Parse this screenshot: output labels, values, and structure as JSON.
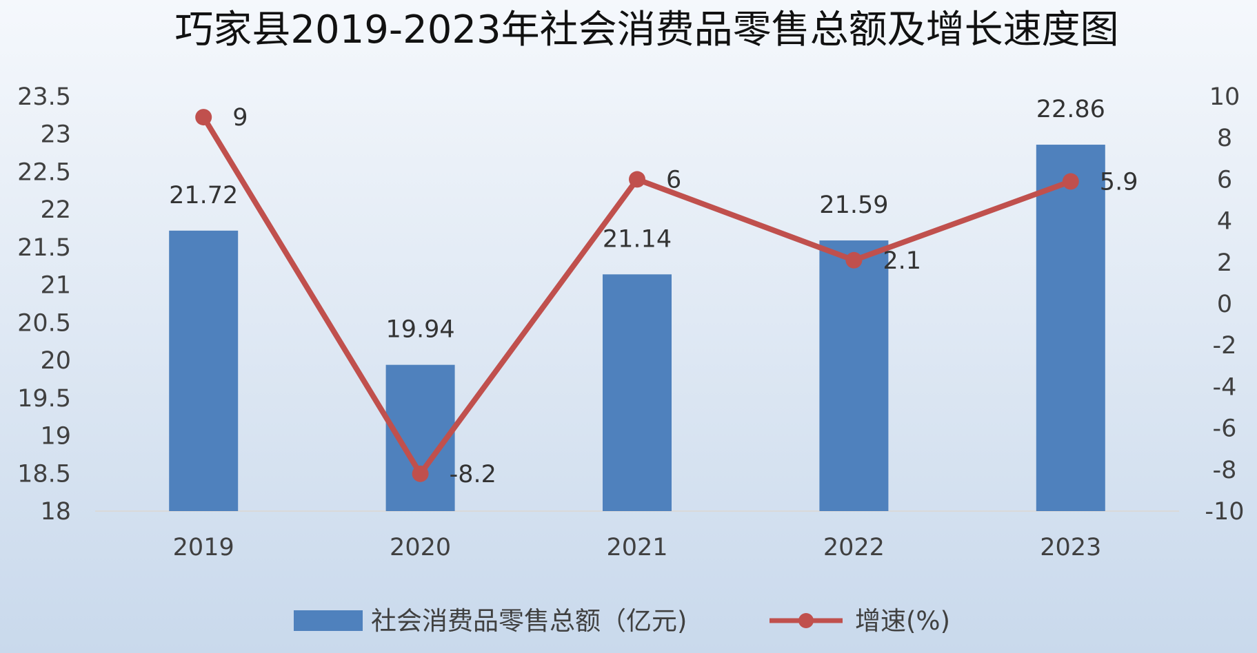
{
  "chart_data": {
    "type": "bar",
    "title": "巧家县2019-2023年社会消费品零售总额及增长速度图",
    "categories": [
      "2019",
      "2020",
      "2021",
      "2022",
      "2023"
    ],
    "series": [
      {
        "name": "社会消费品零售总额（亿元)",
        "type": "bar",
        "axis": "left",
        "color": "#4f81bd",
        "values": [
          21.72,
          19.94,
          21.14,
          21.59,
          22.86
        ],
        "labels": [
          "21.72",
          "19.94",
          "21.14",
          "21.59",
          "22.86"
        ]
      },
      {
        "name": "增速(%)",
        "type": "line",
        "axis": "right",
        "color": "#c0504d",
        "values": [
          9,
          -8.2,
          6,
          2.1,
          5.9
        ],
        "labels": [
          "9",
          "-8.2",
          "6",
          "2.1",
          "5.9"
        ]
      }
    ],
    "y_left": {
      "min": 18,
      "max": 23.5,
      "ticks": [
        "18",
        "18.5",
        "19",
        "19.5",
        "20",
        "20.5",
        "21",
        "21.5",
        "22",
        "22.5",
        "23",
        "23.5"
      ]
    },
    "y_right": {
      "min": -10,
      "max": 10,
      "ticks": [
        "-10",
        "-8",
        "-6",
        "-4",
        "-2",
        "0",
        "2",
        "4",
        "6",
        "8",
        "10"
      ]
    },
    "grid": false,
    "legend_position": "bottom"
  }
}
